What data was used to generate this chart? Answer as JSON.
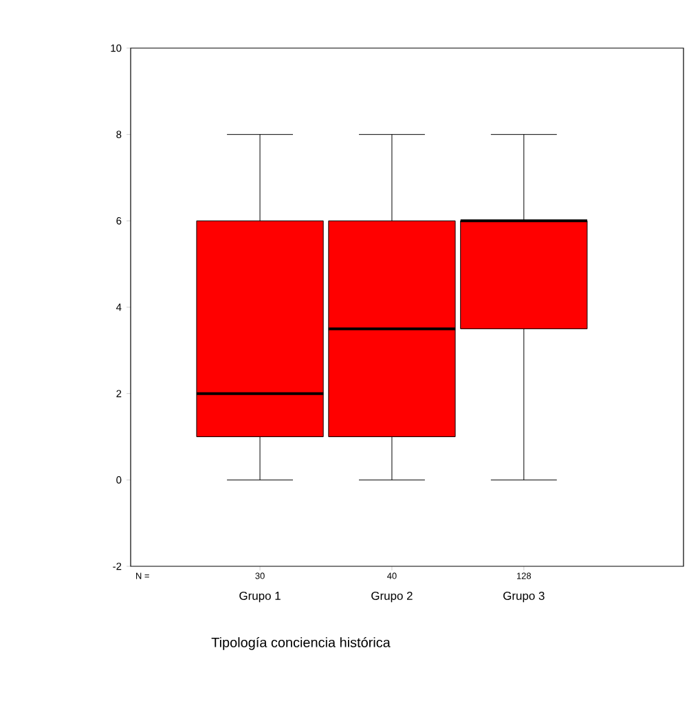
{
  "chart_data": {
    "type": "box",
    "xlabel": "Tipología conciencia histórica",
    "categories": [
      "Grupo 1",
      "Grupo 2",
      "Grupo 3"
    ],
    "color": "#ff0000",
    "boxes": [
      {
        "low": 0,
        "q1": 1,
        "median": 2,
        "q3": 6,
        "high": 8
      },
      {
        "low": 0,
        "q1": 1,
        "median": 3.5,
        "q3": 6,
        "high": 8
      },
      {
        "low": 0,
        "q1": 3.5,
        "median": 6,
        "q3": 6,
        "high": 8
      }
    ],
    "ylim": [
      -2,
      10
    ],
    "yticks": [
      -2,
      0,
      2,
      4,
      6,
      8,
      10
    ],
    "annotations": [
      "N =",
      "30",
      "40",
      "128"
    ]
  }
}
